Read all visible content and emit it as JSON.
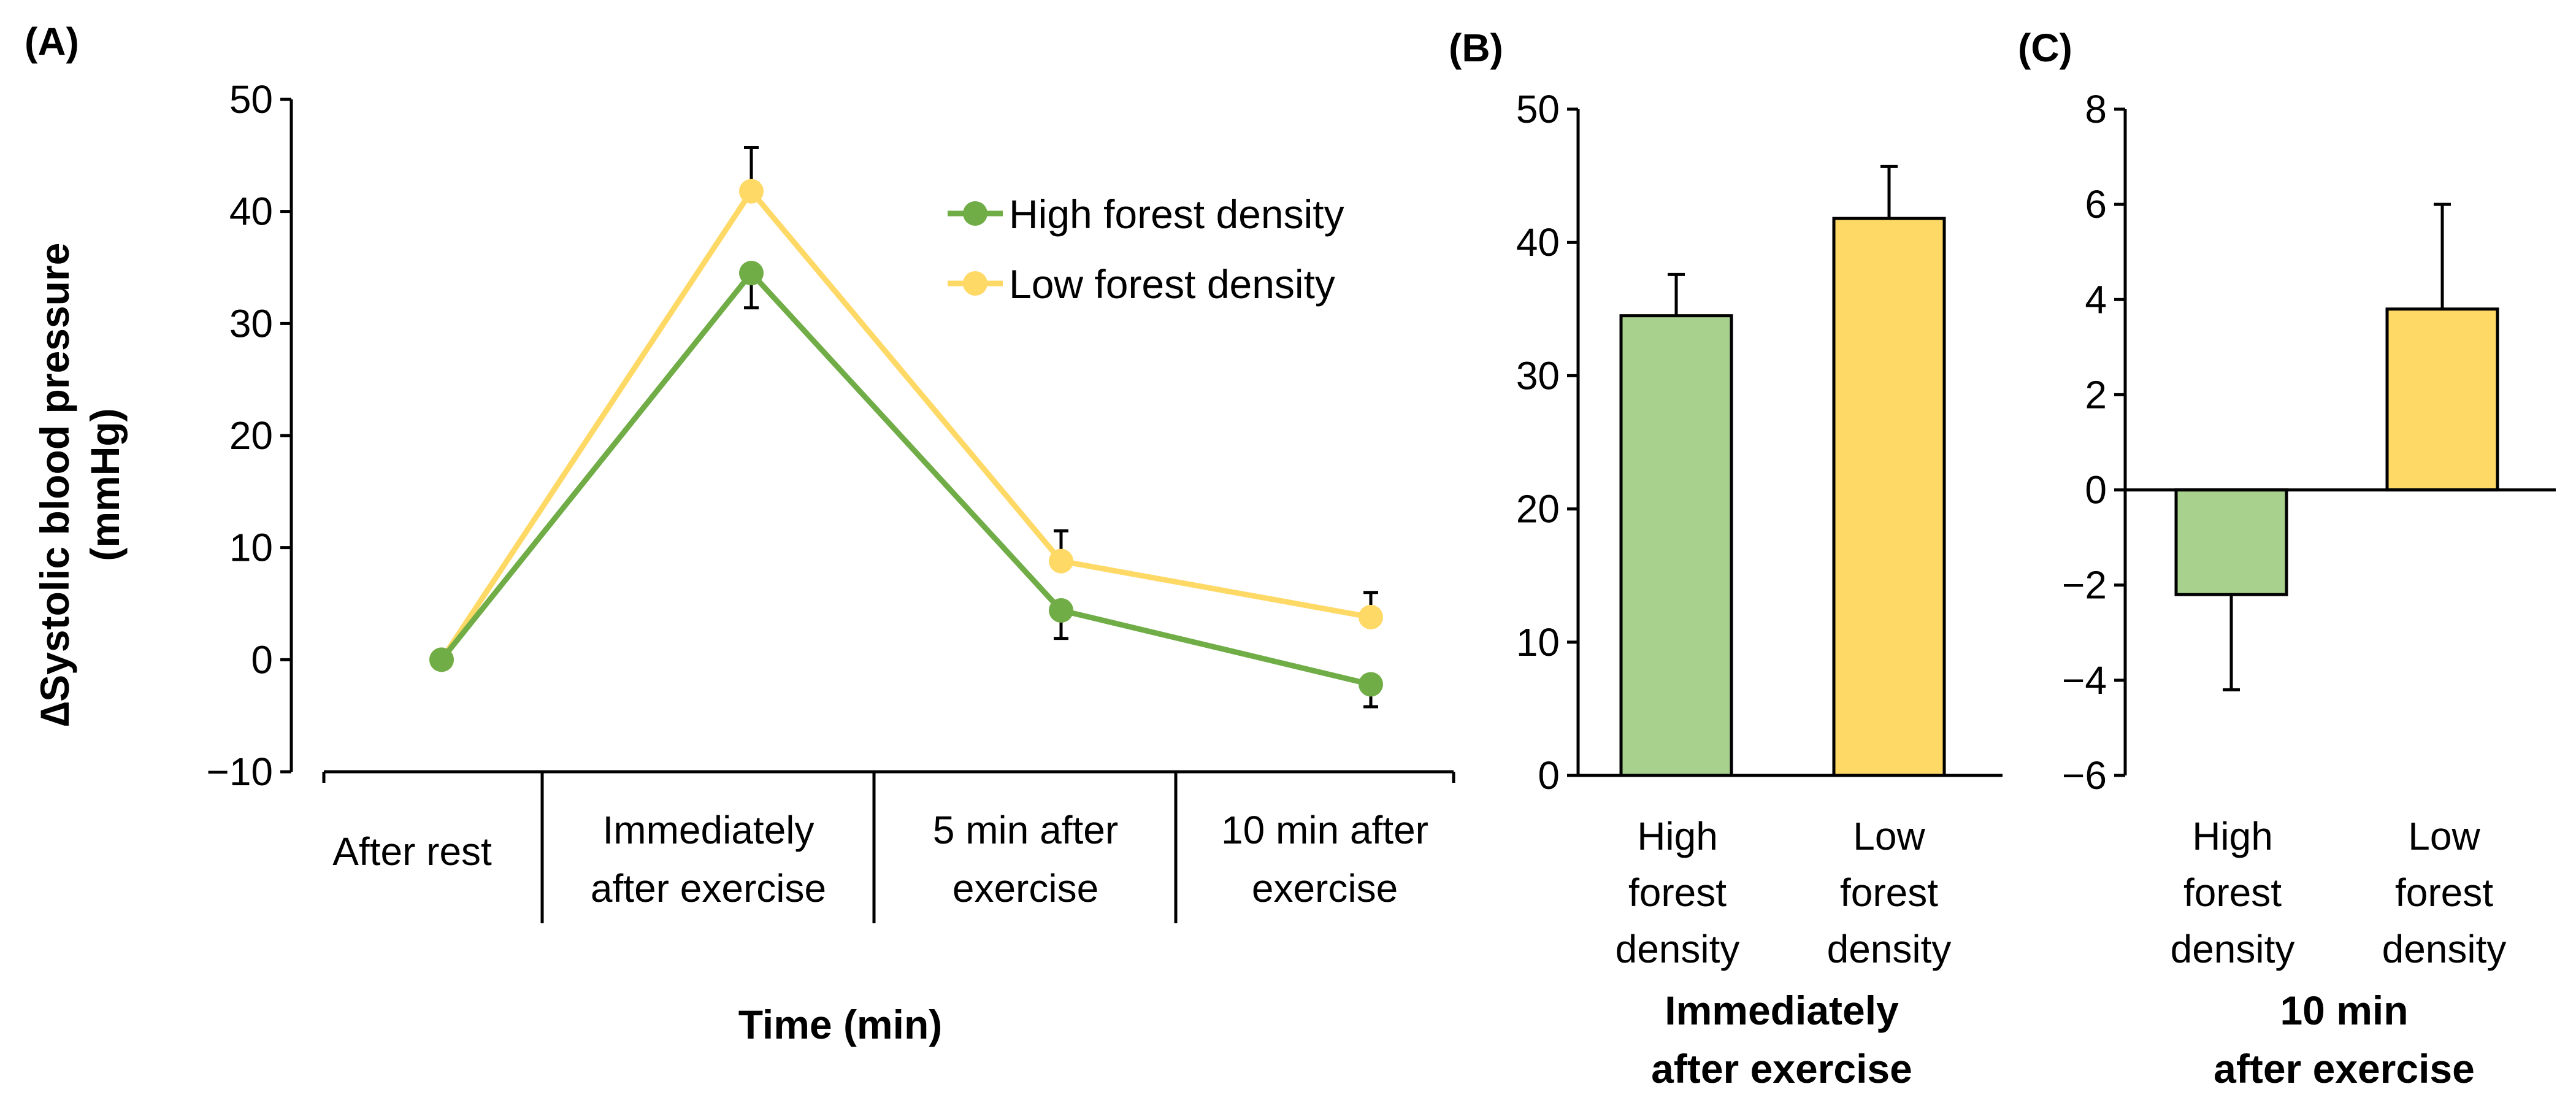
{
  "colors": {
    "high": "#70AD47",
    "low": "#FFD966",
    "high_bar": "#A9D18E",
    "low_bar": "#FFD966",
    "axis": "#000000"
  },
  "chart_data": [
    {
      "panel": "(A)",
      "type": "line",
      "ylabel_line1": "∆Systolic blood pressure",
      "ylabel_line2": "(mmHg)",
      "xlabel": "Time (min)",
      "ylim": [
        -10,
        50
      ],
      "yticks": [
        -10,
        0,
        10,
        20,
        30,
        40,
        50
      ],
      "ytick_labels": [
        "−10",
        "0",
        "10",
        "20",
        "30",
        "40",
        "50"
      ],
      "categories": [
        [
          "After rest"
        ],
        [
          "Immediately",
          "after exercise"
        ],
        [
          "5 min after",
          "exercise"
        ],
        [
          "10 min after",
          "exercise"
        ]
      ],
      "legend_position": "top-right",
      "series": [
        {
          "name": "High forest density",
          "key": "high",
          "values": [
            0,
            34.5,
            4.4,
            -2.2
          ],
          "errors": [
            null,
            3.1,
            2.5,
            2.0
          ]
        },
        {
          "name": "Low forest density",
          "key": "low",
          "values": [
            0,
            41.8,
            8.8,
            3.8
          ],
          "errors": [
            null,
            3.9,
            2.7,
            2.2
          ]
        }
      ]
    },
    {
      "panel": "(B)",
      "type": "bar",
      "subtitle_line1": "Immediately",
      "subtitle_line2": "after exercise",
      "ylim": [
        0,
        50
      ],
      "yticks": [
        0,
        10,
        20,
        30,
        40,
        50
      ],
      "ytick_labels": [
        "0",
        "10",
        "20",
        "30",
        "40",
        "50"
      ],
      "categories": [
        [
          "High",
          "forest",
          "density"
        ],
        [
          "Low",
          "forest",
          "density"
        ]
      ],
      "bars": [
        {
          "key": "high",
          "value": 34.5,
          "error": 3.1
        },
        {
          "key": "low",
          "value": 41.8,
          "error": 3.9
        }
      ]
    },
    {
      "panel": "(C)",
      "type": "bar",
      "subtitle_line1": "10 min",
      "subtitle_line2": "after exercise",
      "ylim": [
        -6,
        8
      ],
      "yticks": [
        -6,
        -4,
        -2,
        0,
        2,
        4,
        6,
        8
      ],
      "ytick_labels": [
        "−6",
        "−4",
        "−2",
        "0",
        "2",
        "4",
        "6",
        "8"
      ],
      "categories": [
        [
          "High",
          "forest",
          "density"
        ],
        [
          "Low",
          "forest",
          "density"
        ]
      ],
      "bars": [
        {
          "key": "high",
          "value": -2.2,
          "error": 2.0
        },
        {
          "key": "low",
          "value": 3.8,
          "error": 2.2
        }
      ]
    }
  ]
}
